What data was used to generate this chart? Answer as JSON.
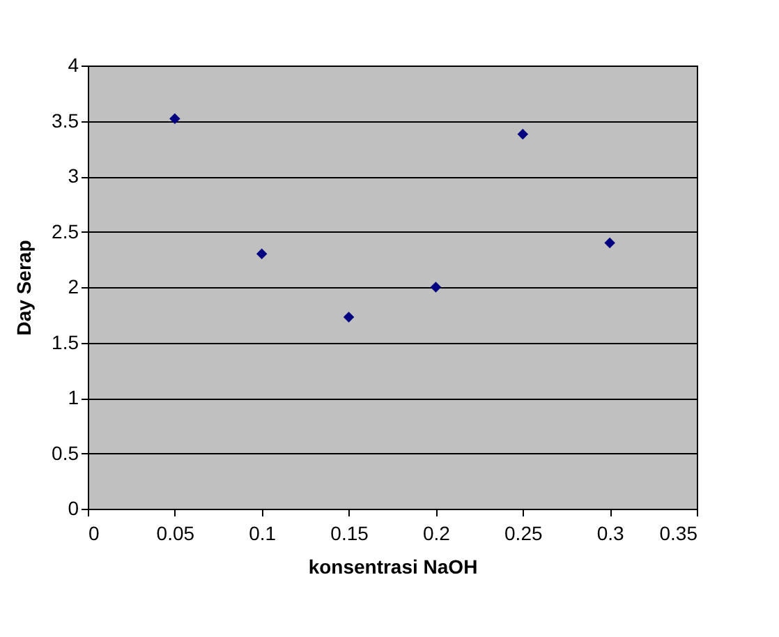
{
  "chart_data": {
    "type": "scatter",
    "xlabel": "konsentrasi NaOH",
    "ylabel": "Day Serap",
    "x": [
      0.05,
      0.1,
      0.15,
      0.2,
      0.25,
      0.3
    ],
    "series": [
      {
        "color": "#000080",
        "values": [
          3.52,
          2.3,
          1.73,
          2.0,
          3.38,
          2.4
        ]
      }
    ],
    "xlim": [
      0,
      0.35
    ],
    "xticks": [
      0,
      0.05,
      0.1,
      0.15,
      0.2,
      0.25,
      0.3,
      0.35
    ],
    "ylim": [
      0,
      4
    ],
    "yticks": [
      0,
      0.5,
      1,
      1.5,
      2,
      2.5,
      3,
      3.5,
      4
    ],
    "grid": "y",
    "legend": false,
    "marker": "diamond"
  }
}
